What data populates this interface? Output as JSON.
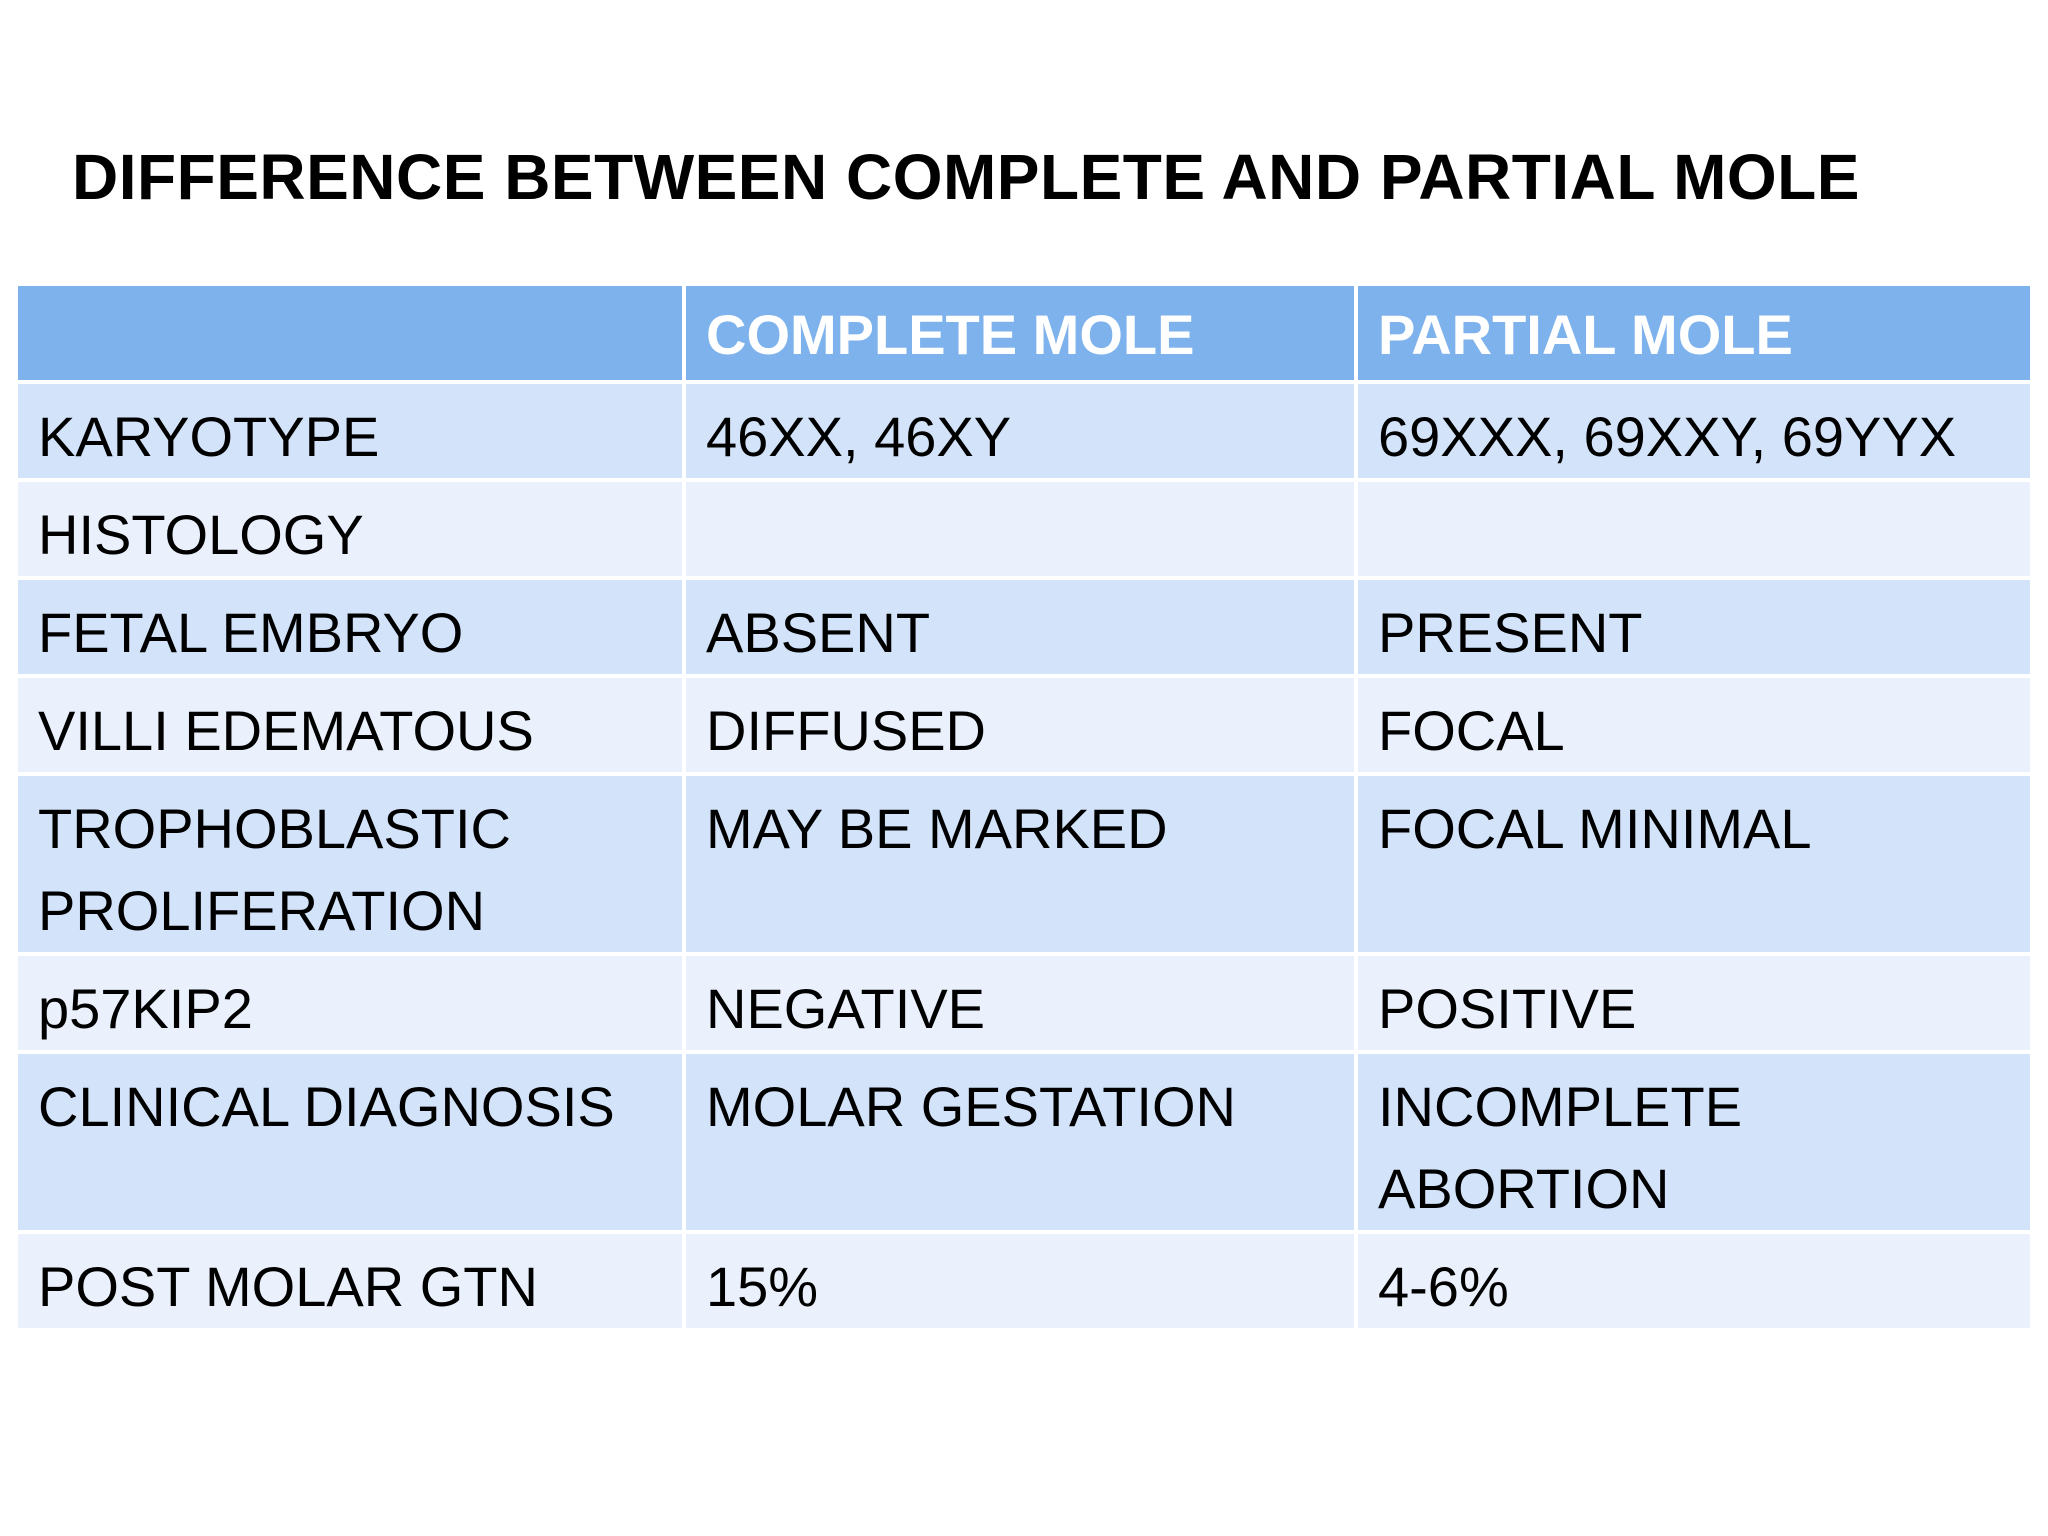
{
  "title": "DIFFERENCE BETWEEN COMPLETE AND PARTIAL MOLE",
  "table": {
    "headers": [
      "",
      "COMPLETE MOLE",
      "PARTIAL MOLE"
    ],
    "rows": [
      [
        "KARYOTYPE",
        "46XX, 46XY",
        "69XXX, 69XXY, 69YYX"
      ],
      [
        "HISTOLOGY",
        "",
        ""
      ],
      [
        "FETAL EMBRYO",
        "ABSENT",
        "PRESENT"
      ],
      [
        "VILLI EDEMATOUS",
        "DIFFUSED",
        "FOCAL"
      ],
      [
        "TROPHOBLASTIC PROLIFERATION",
        "MAY BE MARKED",
        "FOCAL MINIMAL"
      ],
      [
        "p57KIP2",
        "NEGATIVE",
        "POSITIVE"
      ],
      [
        "CLINICAL DIAGNOSIS",
        "MOLAR GESTATION",
        "INCOMPLETE ABORTION"
      ],
      [
        "POST MOLAR GTN",
        "15%",
        "4-6%"
      ]
    ]
  },
  "colors": {
    "header": "#7eb2ec",
    "row_odd": "#d3e3f9",
    "row_even": "#eaf1fc"
  }
}
